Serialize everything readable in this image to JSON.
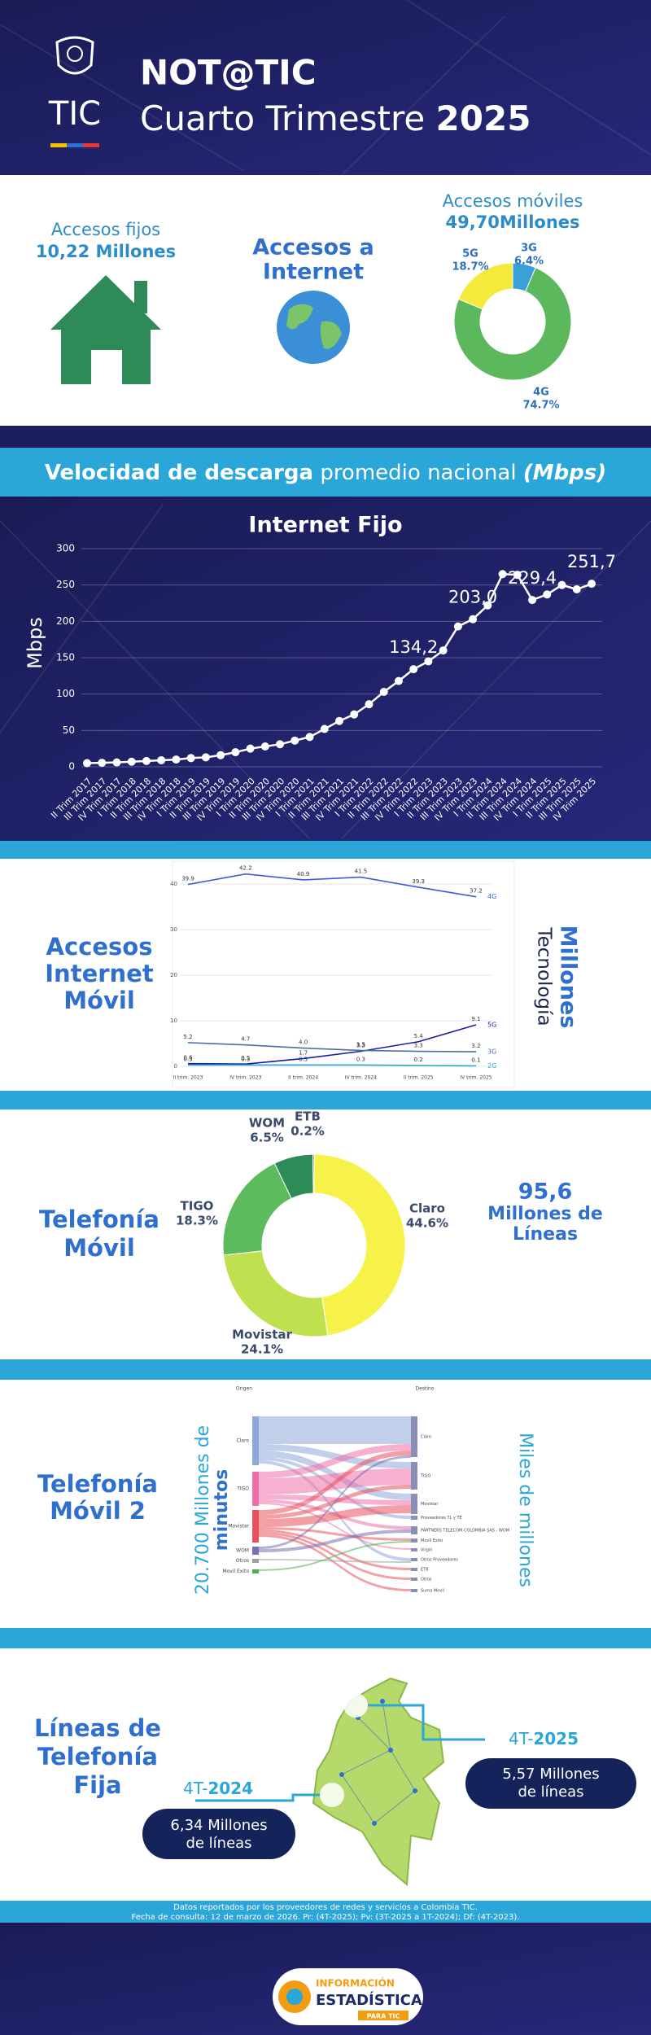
{
  "header": {
    "title": "NOT@TIC",
    "subtitle": "Cuarto Trimestre",
    "year": "2025",
    "logo_text": "TIC"
  },
  "accesos": {
    "fijos_label": "Accesos fijos",
    "fijos_value": "10,22 Millones",
    "internet_label": [
      "Accesos a",
      "Internet"
    ],
    "moviles_label": "Accesos móviles",
    "moviles_value": "49,70Millones"
  },
  "velocidad": {
    "bold": "Velocidad de descarga",
    "normal": "promedio nacional",
    "unit": "(Mbps)"
  },
  "chart_data": [
    {
      "type": "donut",
      "categories": [
        "3G",
        "4G",
        "5G"
      ],
      "values": [
        6.4,
        74.7,
        18.7
      ],
      "value_labels": [
        "6.4%",
        "74.7%",
        "18.7%"
      ],
      "colors": [
        "#3aa0d8",
        "#5cb85c",
        "#f5ea3b"
      ]
    },
    {
      "type": "line",
      "title": "Internet Fijo",
      "ylabel": "Mbps",
      "color": "#ffffff",
      "categories": [
        "II Trim 2017",
        "III Trim 2017",
        "IV Trim 2017",
        "I Trim 2018",
        "II Trim 2018",
        "III Trim 2018",
        "IV Trim 2018",
        "I Trim 2019",
        "II Trim 2019",
        "III Trim 2019",
        "IV Trim 2019",
        "I Trim 2020",
        "II Trim 2020",
        "III Trim 2020",
        "IV Trim 2020",
        "I Trim 2021",
        "II Trim 2021",
        "III Trim 2021",
        "IV Trim 2021",
        "I Trim 2022",
        "II Trim 2022",
        "III Trim 2022",
        "IV Trim 2022",
        "I Trim 2023",
        "II Trim 2023",
        "III Trim 2023",
        "IV Trim 2023",
        "I Trim 2024",
        "II Trim 2024",
        "III Trim 2024",
        "IV Trim 2024",
        "I Trim 2025",
        "II Trim 2025",
        "III Trim 2025",
        "IV Trim 2025"
      ],
      "values": [
        5,
        5.5,
        6,
        7,
        8,
        9,
        10,
        12,
        13,
        16,
        20,
        25,
        28,
        31,
        36,
        41,
        52,
        63,
        72,
        86,
        103,
        118,
        134.2,
        145,
        160,
        193,
        203.0,
        222,
        265,
        264,
        229.4,
        237,
        250,
        244,
        251.7
      ],
      "value_labels": [
        null,
        null,
        null,
        null,
        null,
        null,
        null,
        null,
        null,
        null,
        null,
        null,
        null,
        null,
        null,
        null,
        null,
        null,
        null,
        null,
        null,
        null,
        "134,2",
        null,
        null,
        null,
        "203,0",
        null,
        null,
        null,
        "229,4",
        null,
        null,
        null,
        "251,7"
      ],
      "ylim": [
        0,
        300
      ],
      "yticks": [
        0,
        50,
        100,
        150,
        200,
        250,
        300
      ],
      "grid": true
    },
    {
      "type": "line",
      "title": [
        "Accesos",
        "Internet",
        "Móvil"
      ],
      "ylabel": "Millones",
      "legend_title": "Tecnología",
      "categories": [
        "II trim. 2023",
        "IV trim. 2023",
        "II trim. 2024",
        "IV trim. 2024",
        "II trim. 2025",
        "IV trim. 2025"
      ],
      "series": [
        {
          "name": "4G",
          "color": "#3d5bd9",
          "values": [
            39.9,
            42.2,
            40.9,
            41.5,
            39.3,
            37.2
          ],
          "value_labels": [
            "39.9",
            "42.2",
            "40.9",
            "41.5",
            "39.3",
            "37.2"
          ]
        },
        {
          "name": "5G",
          "color": "#1a1aa8",
          "values": [
            0.6,
            0.5,
            1.7,
            3.3,
            5.4,
            9.1
          ],
          "value_labels": [
            "0.6",
            "0.5",
            "1.7",
            "3.3",
            "5.4",
            "9.1"
          ]
        },
        {
          "name": "3G",
          "color": "#4a6fa5",
          "values": [
            5.2,
            4.7,
            4.0,
            3.5,
            3.3,
            3.2
          ],
          "value_labels": [
            "5.2",
            "4.7",
            "4.0",
            "3.5",
            "3.3",
            "3.2"
          ]
        },
        {
          "name": "2G",
          "color": "#2aa6d9",
          "values": [
            0.3,
            0.3,
            0.3,
            0.3,
            0.2,
            0.1
          ],
          "value_labels": [
            "0.3",
            "0.3",
            "0.3",
            "0.3",
            "0.2",
            "0.1"
          ]
        }
      ],
      "ylim": [
        0,
        45
      ],
      "yticks": [
        0,
        10,
        20,
        30,
        40
      ],
      "grid": true
    },
    {
      "type": "donut",
      "title": [
        "Telefonía",
        "Móvil"
      ],
      "categories": [
        "Claro",
        "Movistar",
        "TIGO",
        "WOM",
        "ETB"
      ],
      "values": [
        44.6,
        24.1,
        18.3,
        6.5,
        0.2
      ],
      "value_labels": [
        "44.6%",
        "24.1%",
        "18.3%",
        "6.5%",
        "0.2%"
      ],
      "colors": [
        "#f7f24a",
        "#bfe04f",
        "#5cbb5c",
        "#2e8b57",
        "#0b5d4d"
      ],
      "total": "95,6",
      "total_unit": [
        "Millones de",
        "Líneas"
      ]
    }
  ],
  "sankey": {
    "title": [
      "Telefonía",
      "Móvil 2"
    ],
    "left_label": "20.700 Millones de",
    "left_label_bold": "minutos",
    "right_label": "Miles de millones",
    "origin_header": "Origen",
    "destination_header": "Destino",
    "origins": [
      "Claro",
      "TIGO",
      "Movistar",
      "WOM",
      "Otros",
      "Movil Exito"
    ],
    "destinations": [
      "Claro",
      "TIGO",
      "Movistar",
      "Proveedores TL y TE",
      "PARTNERS TELECOM COLOMBIA SAS - WOM",
      "Movil Exito",
      "Virgin",
      "Otros Proveedores",
      "ETB",
      "Otros",
      "Suma Movil"
    ]
  },
  "fija": {
    "title": [
      "Líneas de",
      "Telefonía",
      "Fija"
    ],
    "current": {
      "prefix": "4T-",
      "year": "2025",
      "value": "5,57 Millones",
      "unit": "de líneas"
    },
    "previous": {
      "prefix": "4T-",
      "year": "2024",
      "value": "6,34 Millones",
      "unit": "de líneas"
    }
  },
  "footer": {
    "lines": [
      "Datos reportados por los proveedores de redes y servicios a Colombia TIC.",
      "Fecha de consulta: 12 de marzo de 2026. Pr: (4T-2025); Pv: (3T-2025 a 1T-2024); Df: (4T-2023)."
    ],
    "logo": {
      "top": "INFORMACIÓN",
      "main": "ESTADÍSTICA",
      "badge": "PARA TIC"
    }
  }
}
